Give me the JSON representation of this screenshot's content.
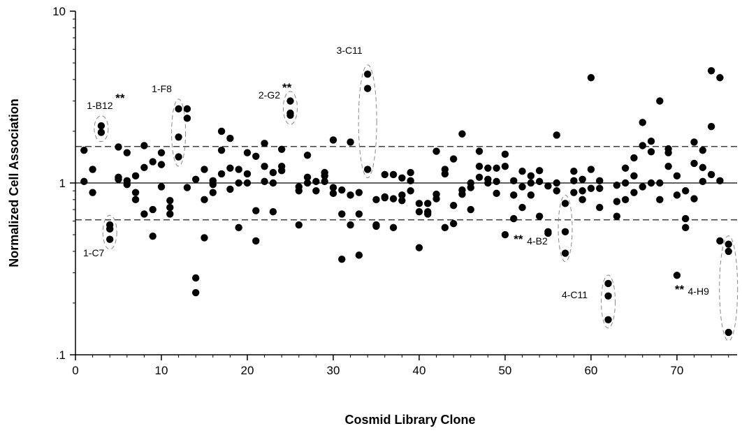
{
  "chart_data": {
    "type": "scatter",
    "xlabel": "Cosmid Library Clone",
    "ylabel": "Normalized Cell Association",
    "xlim": [
      0,
      77
    ],
    "ylim": [
      0.1,
      10
    ],
    "yscale": "log",
    "x_ticks": [
      0,
      10,
      20,
      30,
      40,
      50,
      60,
      70
    ],
    "y_ticks": [
      {
        "value": 0.1,
        "label": ".1"
      },
      {
        "value": 1,
        "label": "1"
      },
      {
        "value": 10,
        "label": "10"
      }
    ],
    "reference_lines": [
      {
        "y": 1.0,
        "style": "solid"
      },
      {
        "y": 1.63,
        "style": "dashed"
      },
      {
        "y": 0.61,
        "style": "dashed"
      }
    ],
    "grid": false,
    "points": [
      [
        1,
        1.55
      ],
      [
        1,
        1.02
      ],
      [
        2,
        1.2
      ],
      [
        2,
        0.88
      ],
      [
        3,
        2.15
      ],
      [
        3,
        1.97
      ],
      [
        4,
        0.57
      ],
      [
        4,
        0.54
      ],
      [
        4,
        0.47
      ],
      [
        5,
        1.62
      ],
      [
        5,
        1.08
      ],
      [
        5,
        1.05
      ],
      [
        6,
        1.5
      ],
      [
        6,
        1.03
      ],
      [
        6,
        0.98
      ],
      [
        7,
        1.1
      ],
      [
        7,
        0.88
      ],
      [
        7,
        0.8
      ],
      [
        8,
        1.65
      ],
      [
        8,
        1.23
      ],
      [
        8,
        0.66
      ],
      [
        9,
        1.33
      ],
      [
        9,
        0.7
      ],
      [
        9,
        0.49
      ],
      [
        10,
        1.5
      ],
      [
        10,
        1.28
      ],
      [
        10,
        0.95
      ],
      [
        11,
        0.79
      ],
      [
        11,
        0.72
      ],
      [
        11,
        0.66
      ],
      [
        12,
        2.7
      ],
      [
        12,
        1.85
      ],
      [
        12,
        1.42
      ],
      [
        13,
        2.7
      ],
      [
        13,
        2.38
      ],
      [
        13,
        0.94
      ],
      [
        14,
        1.05
      ],
      [
        14,
        0.28
      ],
      [
        14,
        0.23
      ],
      [
        15,
        1.2
      ],
      [
        15,
        0.8
      ],
      [
        15,
        0.48
      ],
      [
        16,
        1.03
      ],
      [
        16,
        0.98
      ],
      [
        16,
        0.88
      ],
      [
        17,
        2.0
      ],
      [
        17,
        1.55
      ],
      [
        17,
        1.13
      ],
      [
        18,
        1.82
      ],
      [
        18,
        1.22
      ],
      [
        18,
        0.92
      ],
      [
        19,
        1.2
      ],
      [
        19,
        1.0
      ],
      [
        19,
        0.55
      ],
      [
        20,
        1.5
      ],
      [
        20,
        1.13
      ],
      [
        20,
        1.0
      ],
      [
        21,
        1.43
      ],
      [
        21,
        0.69
      ],
      [
        21,
        0.46
      ],
      [
        22,
        1.7
      ],
      [
        22,
        1.25
      ],
      [
        22,
        1.02
      ],
      [
        23,
        1.15
      ],
      [
        23,
        1.0
      ],
      [
        23,
        0.68
      ],
      [
        24,
        1.57
      ],
      [
        24,
        1.25
      ],
      [
        24,
        1.18
      ],
      [
        25,
        3.0
      ],
      [
        25,
        2.55
      ],
      [
        25,
        2.48
      ],
      [
        26,
        0.95
      ],
      [
        26,
        0.9
      ],
      [
        26,
        0.57
      ],
      [
        27,
        1.45
      ],
      [
        27,
        1.08
      ],
      [
        27,
        1.0
      ],
      [
        28,
        1.02
      ],
      [
        28,
        0.9
      ],
      [
        29,
        1.15
      ],
      [
        29,
        1.1
      ],
      [
        29,
        1.02
      ],
      [
        30,
        1.78
      ],
      [
        30,
        0.94
      ],
      [
        30,
        0.87
      ],
      [
        31,
        0.91
      ],
      [
        31,
        0.66
      ],
      [
        31,
        0.36
      ],
      [
        32,
        1.73
      ],
      [
        32,
        0.85
      ],
      [
        32,
        0.57
      ],
      [
        33,
        0.88
      ],
      [
        33,
        0.66
      ],
      [
        33,
        0.38
      ],
      [
        34,
        4.3
      ],
      [
        34,
        3.55
      ],
      [
        34,
        1.2
      ],
      [
        35,
        0.8
      ],
      [
        35,
        0.57
      ],
      [
        35,
        0.56
      ],
      [
        36,
        1.12
      ],
      [
        36,
        0.83
      ],
      [
        36,
        0.82
      ],
      [
        37,
        1.12
      ],
      [
        37,
        0.81
      ],
      [
        37,
        0.55
      ],
      [
        38,
        1.07
      ],
      [
        38,
        0.85
      ],
      [
        38,
        0.79
      ],
      [
        39,
        1.15
      ],
      [
        39,
        1.03
      ],
      [
        39,
        0.9
      ],
      [
        40,
        0.76
      ],
      [
        40,
        0.68
      ],
      [
        40,
        0.42
      ],
      [
        41,
        0.76
      ],
      [
        41,
        0.68
      ],
      [
        41,
        0.66
      ],
      [
        42,
        1.53
      ],
      [
        42,
        0.86
      ],
      [
        42,
        0.81
      ],
      [
        43,
        1.2
      ],
      [
        43,
        1.13
      ],
      [
        43,
        0.55
      ],
      [
        44,
        1.38
      ],
      [
        44,
        0.74
      ],
      [
        44,
        0.58
      ],
      [
        45,
        1.93
      ],
      [
        45,
        0.91
      ],
      [
        45,
        0.86
      ],
      [
        46,
        1.0
      ],
      [
        46,
        0.94
      ],
      [
        46,
        0.7
      ],
      [
        47,
        1.53
      ],
      [
        47,
        1.25
      ],
      [
        47,
        1.08
      ],
      [
        48,
        1.22
      ],
      [
        48,
        1.05
      ],
      [
        48,
        1.0
      ],
      [
        49,
        1.22
      ],
      [
        49,
        1.02
      ],
      [
        49,
        0.87
      ],
      [
        50,
        1.47
      ],
      [
        50,
        1.25
      ],
      [
        50,
        0.5
      ],
      [
        51,
        1.03
      ],
      [
        51,
        0.85
      ],
      [
        51,
        0.62
      ],
      [
        52,
        1.17
      ],
      [
        52,
        0.95
      ],
      [
        52,
        0.72
      ],
      [
        53,
        1.1
      ],
      [
        53,
        1.0
      ],
      [
        53,
        0.85
      ],
      [
        54,
        1.18
      ],
      [
        54,
        1.02
      ],
      [
        54,
        0.64
      ],
      [
        55,
        0.96
      ],
      [
        55,
        0.52
      ],
      [
        55,
        0.51
      ],
      [
        56,
        1.9
      ],
      [
        56,
        1.0
      ],
      [
        56,
        0.9
      ],
      [
        57,
        0.76
      ],
      [
        57,
        0.52
      ],
      [
        57,
        0.39
      ],
      [
        58,
        1.17
      ],
      [
        58,
        1.03
      ],
      [
        58,
        0.88
      ],
      [
        59,
        1.05
      ],
      [
        59,
        0.9
      ],
      [
        59,
        0.8
      ],
      [
        60,
        4.1
      ],
      [
        60,
        1.2
      ],
      [
        60,
        0.93
      ],
      [
        61,
        1.03
      ],
      [
        61,
        0.93
      ],
      [
        61,
        0.72
      ],
      [
        62,
        0.26
      ],
      [
        62,
        0.22
      ],
      [
        62,
        0.16
      ],
      [
        63,
        0.97
      ],
      [
        63,
        0.78
      ],
      [
        63,
        0.64
      ],
      [
        64,
        1.22
      ],
      [
        64,
        1.0
      ],
      [
        64,
        0.8
      ],
      [
        65,
        1.4
      ],
      [
        65,
        1.1
      ],
      [
        65,
        0.88
      ],
      [
        66,
        2.25
      ],
      [
        66,
        1.65
      ],
      [
        66,
        0.95
      ],
      [
        67,
        1.75
      ],
      [
        67,
        1.52
      ],
      [
        67,
        1.0
      ],
      [
        68,
        3.0
      ],
      [
        68,
        1.0
      ],
      [
        68,
        0.8
      ],
      [
        69,
        1.58
      ],
      [
        69,
        1.5
      ],
      [
        69,
        1.25
      ],
      [
        70,
        1.1
      ],
      [
        70,
        0.85
      ],
      [
        70,
        0.29
      ],
      [
        71,
        0.9
      ],
      [
        71,
        0.62
      ],
      [
        71,
        0.55
      ],
      [
        72,
        1.73
      ],
      [
        72,
        1.3
      ],
      [
        72,
        0.81
      ],
      [
        73,
        1.55
      ],
      [
        73,
        1.23
      ],
      [
        73,
        1.02
      ],
      [
        74,
        4.5
      ],
      [
        74,
        2.13
      ],
      [
        74,
        1.12
      ],
      [
        75,
        4.1
      ],
      [
        75,
        1.03
      ],
      [
        75,
        0.46
      ],
      [
        76,
        0.44
      ],
      [
        76,
        0.4
      ],
      [
        76,
        0.135
      ]
    ],
    "annotations": [
      {
        "label": "1-B12",
        "stars": "**",
        "x": 3,
        "y_range": [
          1.95,
          2.2
        ]
      },
      {
        "label": "1-C7",
        "stars": "",
        "x": 4,
        "y_range": [
          0.46,
          0.58
        ]
      },
      {
        "label": "1-F8",
        "stars": "",
        "x": 12,
        "y_range": [
          1.4,
          2.75
        ]
      },
      {
        "label": "2-G2",
        "stars": "**",
        "x": 25,
        "y_range": [
          2.45,
          3.05
        ]
      },
      {
        "label": "3-C11",
        "stars": "",
        "x": 34,
        "y_range": [
          1.2,
          4.35
        ]
      },
      {
        "label": "4-B2",
        "stars": "**",
        "x": 57,
        "y_range": [
          0.39,
          0.76
        ]
      },
      {
        "label": "4-C11",
        "stars": "",
        "x": 62,
        "y_range": [
          0.16,
          0.26
        ]
      },
      {
        "label": "4-H9",
        "stars": "**",
        "x": 76,
        "y_range": [
          0.135,
          0.44
        ]
      }
    ]
  }
}
